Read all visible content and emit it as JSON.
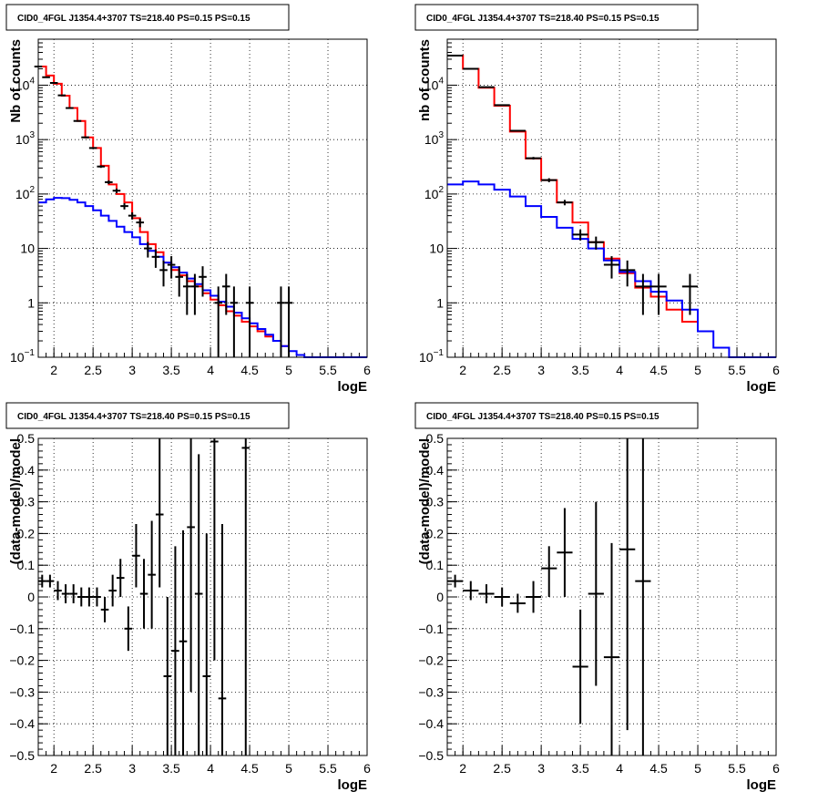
{
  "chart_data": [
    {
      "type": "line",
      "title": "CID0_4FGL J1354.4+3707 TS=218.40 PS=0.15 PS=0.15",
      "xlabel": "logE",
      "ylabel": "Nb of counts",
      "xlim": [
        1.8,
        6.0
      ],
      "ylim": [
        0.1,
        70000
      ],
      "yscale": "log",
      "grid": true,
      "x_ticks": [
        "2",
        "2.5",
        "3",
        "3.5",
        "4",
        "4.5",
        "5",
        "5.5",
        "6"
      ],
      "y_ticks": [
        {
          "v": 0.1,
          "base": "10",
          "sup": "−1"
        },
        {
          "v": 1,
          "base": "1",
          "sup": ""
        },
        {
          "v": 10,
          "base": "10",
          "sup": ""
        },
        {
          "v": 100,
          "base": "10",
          "sup": "2"
        },
        {
          "v": 1000,
          "base": "10",
          "sup": "3"
        },
        {
          "v": 10000,
          "base": "10",
          "sup": "4"
        }
      ],
      "series": [
        {
          "color": "#ff0000",
          "style": "step",
          "edges": [
            1.8,
            1.9,
            2.0,
            2.1,
            2.2,
            2.3,
            2.4,
            2.5,
            2.6,
            2.7,
            2.8,
            2.9,
            3.0,
            3.1,
            3.2,
            3.3,
            3.4,
            3.5,
            3.6,
            3.7,
            3.8,
            3.9,
            4.0,
            4.1,
            4.2,
            4.3,
            4.4,
            4.5,
            4.6,
            4.7,
            4.8,
            4.9,
            5.0
          ],
          "values": [
            22000,
            15000,
            10600,
            6400,
            3800,
            2200,
            1100,
            700,
            330,
            150,
            100,
            70,
            36,
            20,
            12,
            8.5,
            5.5,
            4,
            3.2,
            2.5,
            2.0,
            1.5,
            1.15,
            0.9,
            0.7,
            0.58,
            0.45,
            0.37,
            0.3,
            0.24,
            0.2,
            0.16
          ]
        },
        {
          "color": "#0000ff",
          "style": "step",
          "edges": [
            1.8,
            1.9,
            2.0,
            2.1,
            2.2,
            2.3,
            2.4,
            2.5,
            2.6,
            2.7,
            2.8,
            2.9,
            3.0,
            3.1,
            3.2,
            3.3,
            3.4,
            3.5,
            3.6,
            3.7,
            3.8,
            3.9,
            4.0,
            4.1,
            4.2,
            4.3,
            4.4,
            4.5,
            4.6,
            4.7,
            4.8,
            4.9,
            5.0,
            5.1,
            5.2,
            5.3,
            5.4,
            5.5,
            5.6,
            5.7,
            5.8,
            5.9,
            6.0
          ],
          "values": [
            70,
            80,
            85,
            84,
            78,
            70,
            60,
            50,
            40,
            32,
            25,
            20,
            16,
            12,
            9,
            7,
            5.5,
            4.5,
            3.6,
            2.8,
            2.2,
            1.7,
            1.35,
            1.05,
            0.85,
            0.66,
            0.52,
            0.42,
            0.33,
            0.26,
            0.2,
            0.16,
            0.13,
            0.11,
            0.1,
            0.1,
            0.1,
            0.1,
            0.1,
            0.1,
            0.1,
            0.1
          ]
        }
      ],
      "points": [
        {
          "x": 1.8,
          "y": 22000,
          "xerr": 0.05,
          "ylo": 21700,
          "yhi": 22300
        },
        {
          "x": 1.9,
          "y": 14000,
          "xerr": 0.05,
          "ylo": 13800,
          "yhi": 14200
        },
        {
          "x": 2.0,
          "y": 11000,
          "xerr": 0.05,
          "ylo": 10800,
          "yhi": 11200
        },
        {
          "x": 2.1,
          "y": 6500,
          "xerr": 0.05,
          "ylo": 6350,
          "yhi": 6650
        },
        {
          "x": 2.2,
          "y": 3800,
          "xerr": 0.05,
          "ylo": 3700,
          "yhi": 3900
        },
        {
          "x": 2.3,
          "y": 2200,
          "xerr": 0.05,
          "ylo": 2150,
          "yhi": 2250
        },
        {
          "x": 2.4,
          "y": 1100,
          "xerr": 0.05,
          "ylo": 1065,
          "yhi": 1135
        },
        {
          "x": 2.5,
          "y": 700,
          "xerr": 0.05,
          "ylo": 675,
          "yhi": 725
        },
        {
          "x": 2.6,
          "y": 320,
          "xerr": 0.05,
          "ylo": 302,
          "yhi": 338
        },
        {
          "x": 2.7,
          "y": 165,
          "xerr": 0.05,
          "ylo": 152,
          "yhi": 178
        },
        {
          "x": 2.8,
          "y": 115,
          "xerr": 0.05,
          "ylo": 104,
          "yhi": 126
        },
        {
          "x": 2.9,
          "y": 60,
          "xerr": 0.05,
          "ylo": 52,
          "yhi": 68
        },
        {
          "x": 3.0,
          "y": 40,
          "xerr": 0.05,
          "ylo": 34,
          "yhi": 46
        },
        {
          "x": 3.1,
          "y": 30,
          "xerr": 0.05,
          "ylo": 24.5,
          "yhi": 35.5
        },
        {
          "x": 3.2,
          "y": 10,
          "xerr": 0.05,
          "ylo": 6.8,
          "yhi": 13.2
        },
        {
          "x": 3.3,
          "y": 7,
          "xerr": 0.05,
          "ylo": 4.4,
          "yhi": 9.6
        },
        {
          "x": 3.4,
          "y": 4,
          "xerr": 0.05,
          "ylo": 2.0,
          "yhi": 6.0
        },
        {
          "x": 3.5,
          "y": 5,
          "xerr": 0.05,
          "ylo": 2.8,
          "yhi": 7.2
        },
        {
          "x": 3.6,
          "y": 3,
          "xerr": 0.05,
          "ylo": 1.3,
          "yhi": 4.7
        },
        {
          "x": 3.7,
          "y": 2,
          "xerr": 0.05,
          "ylo": 0.6,
          "yhi": 3.4
        },
        {
          "x": 3.8,
          "y": 2,
          "xerr": 0.05,
          "ylo": 0.6,
          "yhi": 3.4
        },
        {
          "x": 3.9,
          "y": 3,
          "xerr": 0.05,
          "ylo": 1.3,
          "yhi": 4.7
        },
        {
          "x": 4.1,
          "y": 1,
          "xerr": 0.05,
          "ylo": 0.1,
          "yhi": 2.0
        },
        {
          "x": 4.2,
          "y": 2,
          "xerr": 0.05,
          "ylo": 0.6,
          "yhi": 3.4
        },
        {
          "x": 4.3,
          "y": 1,
          "xerr": 0.05,
          "ylo": 0.1,
          "yhi": 2.0
        },
        {
          "x": 4.5,
          "y": 1,
          "xerr": 0.05,
          "ylo": 0.1,
          "yhi": 2.0
        },
        {
          "x": 4.9,
          "y": 1,
          "xerr": 0.05,
          "ylo": 0.1,
          "yhi": 2.0
        },
        {
          "x": 5.0,
          "y": 1,
          "xerr": 0.05,
          "ylo": 0.1,
          "yhi": 2.0
        }
      ]
    },
    {
      "type": "line",
      "title": "CID0_4FGL J1354.4+3707 TS=218.40 PS=0.15 PS=0.15",
      "xlabel": "logE",
      "ylabel": "nb of counts",
      "xlim": [
        1.8,
        6.0
      ],
      "ylim": [
        0.1,
        70000
      ],
      "yscale": "log",
      "grid": true,
      "x_ticks": [
        "2",
        "2.5",
        "3",
        "3.5",
        "4",
        "4.5",
        "5",
        "5.5",
        "6"
      ],
      "y_ticks": [
        {
          "v": 0.1,
          "base": "10",
          "sup": "−1"
        },
        {
          "v": 1,
          "base": "1",
          "sup": ""
        },
        {
          "v": 10,
          "base": "10",
          "sup": ""
        },
        {
          "v": 100,
          "base": "10",
          "sup": "2"
        },
        {
          "v": 1000,
          "base": "10",
          "sup": "3"
        },
        {
          "v": 10000,
          "base": "10",
          "sup": "4"
        }
      ],
      "series": [
        {
          "color": "#ff0000",
          "style": "step",
          "edges": [
            1.8,
            2.0,
            2.2,
            2.4,
            2.6,
            2.8,
            3.0,
            3.2,
            3.4,
            3.6,
            3.8,
            4.0,
            4.2,
            4.4,
            4.6,
            4.8,
            5.0
          ],
          "values": [
            35000,
            20000,
            9000,
            4200,
            1400,
            450,
            180,
            70,
            30,
            13,
            6.5,
            3.5,
            1.9,
            1.3,
            0.75,
            0.45
          ]
        },
        {
          "color": "#0000ff",
          "style": "step",
          "edges": [
            1.8,
            2.0,
            2.2,
            2.4,
            2.6,
            2.8,
            3.0,
            3.2,
            3.4,
            3.6,
            3.8,
            4.0,
            4.2,
            4.4,
            4.6,
            4.8,
            5.0,
            5.2,
            5.4,
            5.6,
            5.8,
            6.0
          ],
          "values": [
            150,
            170,
            150,
            120,
            90,
            60,
            38,
            24,
            15,
            10,
            6,
            3.7,
            2.5,
            1.6,
            1.1,
            0.75,
            0.3,
            0.15,
            0.1,
            0.1,
            0.1
          ]
        }
      ],
      "points": [
        {
          "x": 1.9,
          "y": 35000,
          "xerr": 0.1,
          "ylo": 34600,
          "yhi": 35400
        },
        {
          "x": 2.1,
          "y": 20000,
          "xerr": 0.1,
          "ylo": 19700,
          "yhi": 20300
        },
        {
          "x": 2.3,
          "y": 9200,
          "xerr": 0.1,
          "ylo": 9000,
          "yhi": 9400
        },
        {
          "x": 2.5,
          "y": 4300,
          "xerr": 0.1,
          "ylo": 4170,
          "yhi": 4430
        },
        {
          "x": 2.7,
          "y": 1450,
          "xerr": 0.1,
          "ylo": 1400,
          "yhi": 1500
        },
        {
          "x": 2.9,
          "y": 455,
          "xerr": 0.1,
          "ylo": 430,
          "yhi": 480
        },
        {
          "x": 3.1,
          "y": 180,
          "xerr": 0.1,
          "ylo": 165,
          "yhi": 195
        },
        {
          "x": 3.3,
          "y": 70,
          "xerr": 0.1,
          "ylo": 62,
          "yhi": 78
        },
        {
          "x": 3.5,
          "y": 18,
          "xerr": 0.1,
          "ylo": 14,
          "yhi": 22
        },
        {
          "x": 3.7,
          "y": 13,
          "xerr": 0.1,
          "ylo": 9.5,
          "yhi": 16.5
        },
        {
          "x": 3.9,
          "y": 5,
          "xerr": 0.1,
          "ylo": 2.8,
          "yhi": 7.2
        },
        {
          "x": 4.1,
          "y": 4,
          "xerr": 0.1,
          "ylo": 2.0,
          "yhi": 6.0
        },
        {
          "x": 4.3,
          "y": 2,
          "xerr": 0.1,
          "ylo": 0.6,
          "yhi": 3.4
        },
        {
          "x": 4.5,
          "y": 2,
          "xerr": 0.1,
          "ylo": 0.6,
          "yhi": 3.4
        },
        {
          "x": 4.9,
          "y": 2,
          "xerr": 0.1,
          "ylo": 0.6,
          "yhi": 3.4
        }
      ]
    },
    {
      "type": "scatter",
      "title": "CID0_4FGL J1354.4+3707 TS=218.40 PS=0.15 PS=0.15",
      "xlabel": "logE",
      "ylabel": "(data-model)/model",
      "xlim": [
        1.8,
        6.0
      ],
      "ylim": [
        -0.5,
        0.5
      ],
      "yscale": "linear",
      "grid": true,
      "x_ticks": [
        "2",
        "2.5",
        "3",
        "3.5",
        "4",
        "4.5",
        "5",
        "5.5",
        "6"
      ],
      "y_ticks": [
        "−0.5",
        "−0.4",
        "−0.3",
        "−0.2",
        "−0.1",
        "0",
        "0.1",
        "0.2",
        "0.3",
        "0.4",
        "0.5"
      ],
      "points": [
        {
          "x": 1.85,
          "y": 0.05,
          "xerr": 0.05,
          "ylo": 0.03,
          "yhi": 0.07
        },
        {
          "x": 1.95,
          "y": 0.05,
          "xerr": 0.05,
          "ylo": 0.03,
          "yhi": 0.07
        },
        {
          "x": 2.05,
          "y": 0.02,
          "xerr": 0.05,
          "ylo": -0.01,
          "yhi": 0.05
        },
        {
          "x": 2.15,
          "y": 0.01,
          "xerr": 0.05,
          "ylo": -0.02,
          "yhi": 0.04
        },
        {
          "x": 2.25,
          "y": 0.01,
          "xerr": 0.05,
          "ylo": -0.02,
          "yhi": 0.04
        },
        {
          "x": 2.35,
          "y": 0.0,
          "xerr": 0.05,
          "ylo": -0.03,
          "yhi": 0.03
        },
        {
          "x": 2.45,
          "y": 0.0,
          "xerr": 0.05,
          "ylo": -0.03,
          "yhi": 0.03
        },
        {
          "x": 2.55,
          "y": 0.0,
          "xerr": 0.05,
          "ylo": -0.03,
          "yhi": 0.03
        },
        {
          "x": 2.65,
          "y": -0.04,
          "xerr": 0.05,
          "ylo": -0.08,
          "yhi": 0.0
        },
        {
          "x": 2.75,
          "y": 0.02,
          "xerr": 0.05,
          "ylo": -0.03,
          "yhi": 0.07
        },
        {
          "x": 2.85,
          "y": 0.06,
          "xerr": 0.05,
          "ylo": 0.0,
          "yhi": 0.12
        },
        {
          "x": 2.95,
          "y": -0.1,
          "xerr": 0.05,
          "ylo": -0.17,
          "yhi": -0.03
        },
        {
          "x": 3.05,
          "y": 0.13,
          "xerr": 0.05,
          "ylo": 0.03,
          "yhi": 0.23
        },
        {
          "x": 3.15,
          "y": 0.01,
          "xerr": 0.05,
          "ylo": -0.1,
          "yhi": 0.12
        },
        {
          "x": 3.25,
          "y": 0.07,
          "xerr": 0.05,
          "ylo": -0.1,
          "yhi": 0.24
        },
        {
          "x": 3.35,
          "y": 0.26,
          "xerr": 0.05,
          "ylo": 0.03,
          "yhi": 0.5
        },
        {
          "x": 3.45,
          "y": -0.25,
          "xerr": 0.05,
          "ylo": -0.5,
          "yhi": 0.0
        },
        {
          "x": 3.55,
          "y": -0.17,
          "xerr": 0.05,
          "ylo": -0.5,
          "yhi": 0.16
        },
        {
          "x": 3.65,
          "y": -0.14,
          "xerr": 0.05,
          "ylo": -0.5,
          "yhi": 0.21
        },
        {
          "x": 3.75,
          "y": 0.22,
          "xerr": 0.05,
          "ylo": -0.3,
          "yhi": 0.5
        },
        {
          "x": 3.85,
          "y": 0.01,
          "xerr": 0.05,
          "ylo": -0.5,
          "yhi": 0.45
        },
        {
          "x": 3.95,
          "y": -0.25,
          "xerr": 0.05,
          "ylo": -0.5,
          "yhi": 0.2
        },
        {
          "x": 4.05,
          "y": 0.49,
          "xerr": 0.05,
          "ylo": -0.2,
          "yhi": 0.5
        },
        {
          "x": 4.15,
          "y": -0.32,
          "xerr": 0.05,
          "ylo": -0.5,
          "yhi": 0.23
        },
        {
          "x": 4.45,
          "y": 0.47,
          "xerr": 0.05,
          "ylo": -0.5,
          "yhi": 0.5
        }
      ]
    },
    {
      "type": "scatter",
      "title": "CID0_4FGL J1354.4+3707 TS=218.40 PS=0.15 PS=0.15",
      "xlabel": "logE",
      "ylabel": "(data-model)/model",
      "xlim": [
        1.8,
        6.0
      ],
      "ylim": [
        -0.5,
        0.5
      ],
      "yscale": "linear",
      "grid": true,
      "x_ticks": [
        "2",
        "2.5",
        "3",
        "3.5",
        "4",
        "4.5",
        "5",
        "5.5",
        "6"
      ],
      "y_ticks": [
        "−0.5",
        "−0.4",
        "−0.3",
        "−0.2",
        "−0.1",
        "0",
        "0.1",
        "0.2",
        "0.3",
        "0.4",
        "0.5"
      ],
      "points": [
        {
          "x": 1.9,
          "y": 0.05,
          "xerr": 0.1,
          "ylo": 0.03,
          "yhi": 0.07
        },
        {
          "x": 2.1,
          "y": 0.02,
          "xerr": 0.1,
          "ylo": -0.01,
          "yhi": 0.05
        },
        {
          "x": 2.3,
          "y": 0.01,
          "xerr": 0.1,
          "ylo": -0.02,
          "yhi": 0.04
        },
        {
          "x": 2.5,
          "y": 0.0,
          "xerr": 0.1,
          "ylo": -0.03,
          "yhi": 0.03
        },
        {
          "x": 2.7,
          "y": -0.02,
          "xerr": 0.1,
          "ylo": -0.05,
          "yhi": 0.01
        },
        {
          "x": 2.9,
          "y": 0.0,
          "xerr": 0.1,
          "ylo": -0.05,
          "yhi": 0.05
        },
        {
          "x": 3.1,
          "y": 0.09,
          "xerr": 0.1,
          "ylo": 0.0,
          "yhi": 0.16
        },
        {
          "x": 3.3,
          "y": 0.14,
          "xerr": 0.1,
          "ylo": 0.0,
          "yhi": 0.28
        },
        {
          "x": 3.5,
          "y": -0.22,
          "xerr": 0.1,
          "ylo": -0.4,
          "yhi": -0.04
        },
        {
          "x": 3.7,
          "y": 0.01,
          "xerr": 0.1,
          "ylo": -0.28,
          "yhi": 0.3
        },
        {
          "x": 3.9,
          "y": -0.19,
          "xerr": 0.1,
          "ylo": -0.5,
          "yhi": 0.17
        },
        {
          "x": 4.1,
          "y": 0.15,
          "xerr": 0.1,
          "ylo": -0.42,
          "yhi": 0.5
        },
        {
          "x": 4.3,
          "y": 0.05,
          "xerr": 0.1,
          "ylo": -0.5,
          "yhi": 0.5
        }
      ]
    }
  ]
}
